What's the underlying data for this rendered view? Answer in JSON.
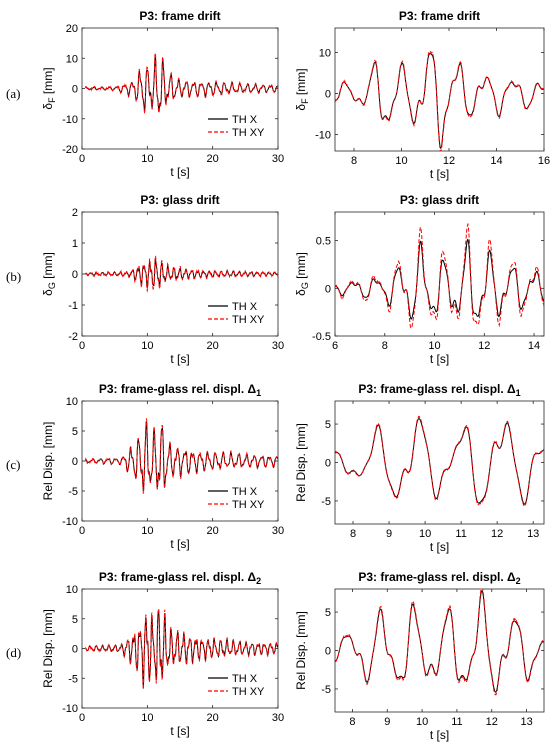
{
  "row_labels": [
    "(a)",
    "(b)",
    "(c)",
    "(d)"
  ],
  "colors": {
    "th_x": "#000000",
    "th_xy": "#ff0000"
  },
  "chart_data": [
    {
      "type": "line",
      "title": "P3: frame drift",
      "title_sub": "",
      "xlabel": "t [s]",
      "ylabel": "δ",
      "ylabel_sub": "F",
      "ylabel_unit": " [mm]",
      "xlim": [
        0,
        30
      ],
      "ylim": [
        -20,
        20
      ],
      "xticks": [
        0,
        10,
        20,
        30
      ],
      "yticks": [
        -20,
        -10,
        0,
        10,
        20
      ],
      "legend": {
        "position": "bottom-right",
        "entries": [
          "TH X",
          "TH XY"
        ]
      },
      "series": [
        {
          "name": "TH X"
        },
        {
          "name": "TH XY"
        }
      ],
      "signal": {
        "t0": 0.5,
        "t1": 30,
        "pts": 700,
        "freq": 0.85,
        "env": [
          [
            0,
            0.4
          ],
          [
            5,
            0.6
          ],
          [
            8,
            3
          ],
          [
            9.3,
            9
          ],
          [
            10.5,
            7
          ],
          [
            11.8,
            13
          ],
          [
            13,
            6
          ],
          [
            15,
            3
          ],
          [
            20,
            2.5
          ],
          [
            25,
            1.6
          ],
          [
            30,
            1.2
          ]
        ],
        "amp": 1.0,
        "xy_scale": 1.12
      }
    },
    {
      "type": "line",
      "title": "P3: frame drift",
      "title_sub": "",
      "xlabel": "t [s]",
      "ylabel": "δ",
      "ylabel_sub": "F",
      "ylabel_unit": " [mm]",
      "xlim": [
        7.2,
        16
      ],
      "ylim": [
        -14,
        16
      ],
      "xticks": [
        8,
        10,
        12,
        14,
        16
      ],
      "yticks": [
        -10,
        0,
        10
      ],
      "legend": null,
      "series": [
        {
          "name": "TH X"
        },
        {
          "name": "TH XY"
        }
      ],
      "signal": {
        "t0": 7.2,
        "t1": 16,
        "pts": 500,
        "freq": 0.85,
        "env": [
          [
            7.2,
            2.5
          ],
          [
            8.5,
            4
          ],
          [
            9.3,
            13
          ],
          [
            10,
            7
          ],
          [
            11.7,
            15
          ],
          [
            12.2,
            10
          ],
          [
            13,
            6
          ],
          [
            14.5,
            5
          ],
          [
            16,
            3
          ]
        ],
        "amp": 1.0,
        "xy_scale": 1.05
      }
    },
    {
      "type": "line",
      "title": "P3: glass drift",
      "title_sub": "",
      "xlabel": "t [s]",
      "ylabel": "δ",
      "ylabel_sub": "G",
      "ylabel_unit": " [mm]",
      "xlim": [
        0,
        30
      ],
      "ylim": [
        -2,
        2
      ],
      "xticks": [
        0,
        10,
        20,
        30
      ],
      "yticks": [
        -2,
        -1,
        0,
        1,
        2
      ],
      "legend": {
        "position": "bottom-right",
        "entries": [
          "TH X",
          "TH XY"
        ]
      },
      "series": [
        {
          "name": "TH X"
        },
        {
          "name": "TH XY"
        }
      ],
      "signal": {
        "t0": 0.5,
        "t1": 30,
        "pts": 700,
        "freq": 1.1,
        "env": [
          [
            0,
            0.04
          ],
          [
            7,
            0.07
          ],
          [
            9.5,
            0.4
          ],
          [
            11.5,
            0.55
          ],
          [
            13,
            0.25
          ],
          [
            18,
            0.12
          ],
          [
            25,
            0.08
          ],
          [
            30,
            0.06
          ]
        ],
        "amp": 1.0,
        "xy_scale": 1.25
      }
    },
    {
      "type": "line",
      "title": "P3: glass drift",
      "title_sub": "",
      "xlabel": "t [s]",
      "ylabel": "δ",
      "ylabel_sub": "G",
      "ylabel_unit": " [mm]",
      "xlim": [
        6,
        14.4
      ],
      "ylim": [
        -0.5,
        0.8
      ],
      "xticks": [
        6,
        8,
        10,
        12,
        14
      ],
      "yticks": [
        -0.5,
        0,
        0.5
      ],
      "legend": null,
      "series": [
        {
          "name": "TH X"
        },
        {
          "name": "TH XY"
        }
      ],
      "signal": {
        "t0": 6,
        "t1": 14.4,
        "pts": 500,
        "freq": 1.1,
        "env": [
          [
            6,
            0.06
          ],
          [
            8,
            0.15
          ],
          [
            9.5,
            0.5
          ],
          [
            10.5,
            0.3
          ],
          [
            11.5,
            0.55
          ],
          [
            12.5,
            0.35
          ],
          [
            13.5,
            0.25
          ],
          [
            14.4,
            0.2
          ]
        ],
        "amp": 1.0,
        "xy_scale": 1.3
      }
    },
    {
      "type": "line",
      "title": "P3: frame-glass rel. displ. Δ",
      "title_sub": "1",
      "xlabel": "t [s]",
      "ylabel": "Rel Disp. [mm]",
      "ylabel_sub": "",
      "ylabel_unit": "",
      "xlim": [
        0,
        30
      ],
      "ylim": [
        -10,
        10
      ],
      "xticks": [
        0,
        10,
        20,
        30
      ],
      "yticks": [
        -10,
        -5,
        0,
        5,
        10
      ],
      "legend": {
        "position": "bottom-right",
        "entries": [
          "TH X",
          "TH XY"
        ]
      },
      "series": [
        {
          "name": "TH X"
        },
        {
          "name": "TH XY"
        }
      ],
      "signal": {
        "t0": 0.5,
        "t1": 30,
        "pts": 700,
        "freq": 0.85,
        "env": [
          [
            0,
            0.3
          ],
          [
            6,
            0.6
          ],
          [
            8.5,
            4
          ],
          [
            9.7,
            7
          ],
          [
            11,
            5
          ],
          [
            12,
            7.5
          ],
          [
            13.5,
            3
          ],
          [
            18,
            1.8
          ],
          [
            25,
            1.2
          ],
          [
            30,
            1
          ]
        ],
        "amp": 1.0,
        "xy_scale": 1.08
      }
    },
    {
      "type": "line",
      "title": "P3: frame-glass rel. displ. Δ",
      "title_sub": "1",
      "xlabel": "t [s]",
      "ylabel": "Rel Disp. [mm]",
      "ylabel_sub": "",
      "ylabel_unit": "",
      "xlim": [
        7.5,
        13.3
      ],
      "ylim": [
        -8,
        8
      ],
      "xticks": [
        8,
        9,
        10,
        11,
        12,
        13
      ],
      "yticks": [
        -5,
        0,
        5
      ],
      "legend": null,
      "series": [
        {
          "name": "TH X"
        },
        {
          "name": "TH XY"
        }
      ],
      "signal": {
        "t0": 7.5,
        "t1": 13.3,
        "pts": 450,
        "freq": 0.85,
        "env": [
          [
            7.5,
            1.5
          ],
          [
            8.5,
            4
          ],
          [
            9.5,
            7.5
          ],
          [
            10.5,
            4.5
          ],
          [
            11.5,
            6.5
          ],
          [
            12,
            7.5
          ],
          [
            12.6,
            6
          ],
          [
            13.3,
            3
          ]
        ],
        "amp": 1.0,
        "xy_scale": 1.04
      }
    },
    {
      "type": "line",
      "title": "P3: frame-glass rel. displ. Δ",
      "title_sub": "2",
      "xlabel": "t [s]",
      "ylabel": "Rel Disp. [mm]",
      "ylabel_sub": "",
      "ylabel_unit": "",
      "xlim": [
        0,
        30
      ],
      "ylim": [
        -10,
        10
      ],
      "xticks": [
        0,
        10,
        20,
        30
      ],
      "yticks": [
        -10,
        -5,
        0,
        5,
        10
      ],
      "legend": {
        "position": "bottom-right",
        "entries": [
          "TH X",
          "TH XY"
        ]
      },
      "series": [
        {
          "name": "TH X"
        },
        {
          "name": "TH XY"
        }
      ],
      "signal": {
        "t0": 0.5,
        "t1": 30,
        "pts": 700,
        "freq": 1.05,
        "env": [
          [
            0,
            0.4
          ],
          [
            6,
            0.7
          ],
          [
            8.5,
            4
          ],
          [
            9.8,
            7
          ],
          [
            11,
            5.5
          ],
          [
            11.8,
            8
          ],
          [
            13.5,
            3.5
          ],
          [
            18,
            2
          ],
          [
            25,
            1.2
          ],
          [
            30,
            1
          ]
        ],
        "amp": 1.0,
        "xy_scale": 1.1
      }
    },
    {
      "type": "line",
      "title": "P3: frame-glass rel. displ. Δ",
      "title_sub": "2",
      "xlabel": "t [s]",
      "ylabel": "Rel Disp. [mm]",
      "ylabel_sub": "",
      "ylabel_unit": "",
      "xlim": [
        7.5,
        13.5
      ],
      "ylim": [
        -8,
        8
      ],
      "xticks": [
        8,
        9,
        10,
        11,
        12,
        13
      ],
      "yticks": [
        -5,
        0,
        5
      ],
      "legend": null,
      "series": [
        {
          "name": "TH X"
        },
        {
          "name": "TH XY"
        }
      ],
      "signal": {
        "t0": 7.5,
        "t1": 13.5,
        "pts": 500,
        "freq": 1.05,
        "env": [
          [
            7.5,
            1.5
          ],
          [
            8.5,
            5
          ],
          [
            9.5,
            6.5
          ],
          [
            10.5,
            5
          ],
          [
            11.5,
            8
          ],
          [
            12,
            7
          ],
          [
            12.7,
            5
          ],
          [
            13.5,
            3
          ]
        ],
        "amp": 1.0,
        "xy_scale": 1.06
      }
    }
  ]
}
